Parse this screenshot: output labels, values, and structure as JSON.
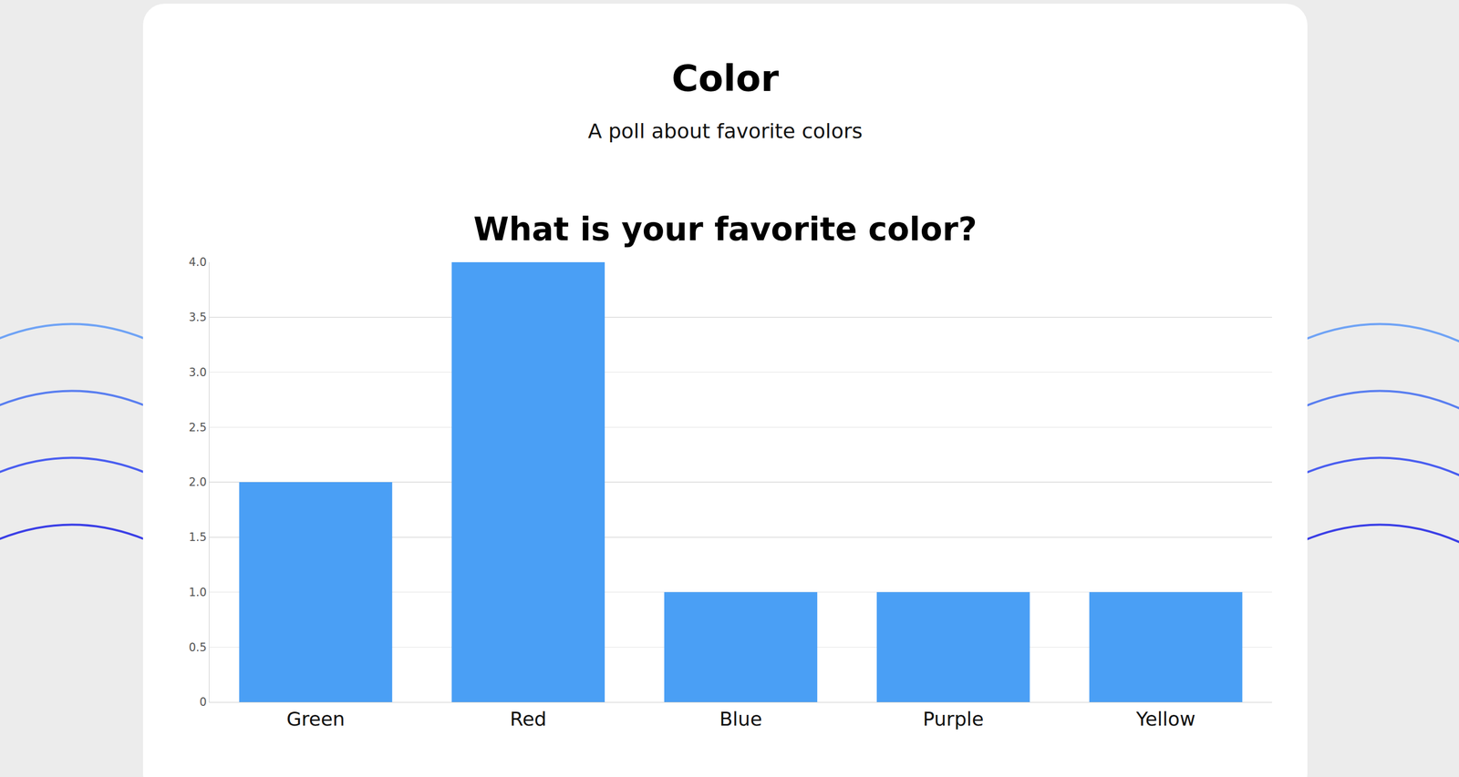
{
  "header": {
    "title": "Color",
    "subtitle": "A poll about favorite colors"
  },
  "chart_data": {
    "type": "bar",
    "title": "What is your favorite color?",
    "categories": [
      "Green",
      "Red",
      "Blue",
      "Purple",
      "Yellow"
    ],
    "values": [
      2,
      4,
      1,
      1,
      1
    ],
    "color": "#4a9ff5",
    "ylim": [
      0,
      4
    ],
    "yticks": [
      0,
      0.5,
      {
        "value": 1,
        "label": "1.0"
      },
      1.5,
      {
        "value": 2,
        "label": "2.0"
      },
      2.5,
      {
        "value": 3,
        "label": "3.0"
      },
      3.5,
      {
        "value": 4,
        "label": "4.0"
      }
    ],
    "grid": true
  }
}
